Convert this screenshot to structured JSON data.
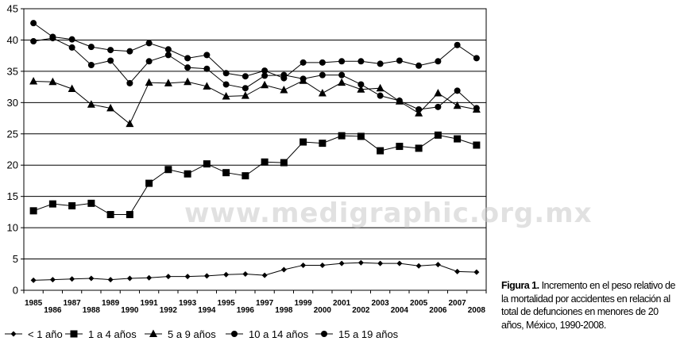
{
  "chart_data": {
    "type": "line",
    "x": [
      "1985",
      "1986",
      "1987",
      "1988",
      "1989",
      "1990",
      "1991",
      "1992",
      "1993",
      "1994",
      "1995",
      "1996",
      "1997",
      "1998",
      "1999",
      "2000",
      "2001",
      "2002",
      "2003",
      "2004",
      "2005",
      "2006",
      "2007",
      "2008"
    ],
    "ylim": [
      0,
      45
    ],
    "yticks": [
      0,
      5,
      10,
      15,
      20,
      25,
      30,
      35,
      40,
      45
    ],
    "grid": "horizontal",
    "legend_position": "bottom",
    "series": [
      {
        "name": "< 1 año",
        "marker": "diamond",
        "values": [
          1.6,
          1.7,
          1.8,
          1.9,
          1.7,
          1.9,
          2.0,
          2.2,
          2.2,
          2.3,
          2.5,
          2.6,
          2.4,
          3.3,
          4.0,
          4.0,
          4.3,
          4.4,
          4.3,
          4.3,
          3.9,
          4.1,
          3.0,
          2.9
        ]
      },
      {
        "name": "1 a 4 años",
        "marker": "square",
        "values": [
          12.7,
          13.8,
          13.5,
          13.9,
          12.1,
          12.1,
          17.1,
          19.3,
          18.6,
          20.2,
          18.8,
          18.3,
          20.5,
          20.4,
          23.7,
          23.5,
          24.7,
          24.6,
          22.3,
          23.0,
          22.7,
          24.8,
          24.2,
          23.2
        ]
      },
      {
        "name": "5 a 9 años",
        "marker": "triangle",
        "values": [
          33.4,
          33.3,
          32.2,
          29.7,
          29.1,
          26.6,
          33.2,
          33.1,
          33.3,
          32.6,
          31.0,
          31.1,
          32.8,
          32.0,
          33.5,
          31.5,
          33.2,
          32.1,
          32.3,
          30.2,
          28.3,
          31.5,
          29.5,
          28.9
        ]
      },
      {
        "name": "10 a 14 años",
        "marker": "circle",
        "values": [
          39.8,
          40.3,
          38.8,
          36.0,
          36.7,
          33.1,
          36.6,
          37.6,
          35.6,
          35.4,
          32.9,
          32.3,
          34.3,
          34.4,
          33.8,
          34.4,
          34.4,
          32.9,
          31.1,
          30.3,
          28.9,
          29.3,
          31.9,
          29.1
        ]
      },
      {
        "name": "15 a 19 años",
        "marker": "circle",
        "values": [
          42.7,
          40.5,
          40.1,
          38.9,
          38.4,
          38.2,
          39.5,
          38.5,
          37.1,
          37.6,
          34.7,
          34.2,
          35.1,
          33.9,
          36.4,
          36.4,
          36.6,
          36.6,
          36.2,
          36.7,
          35.9,
          36.6,
          39.2,
          37.1
        ]
      }
    ]
  },
  "caption": {
    "label": "Figura 1.",
    "text": " Incremento en el peso relativo de la mortalidad por accidentes en relación al total de defunciones en menores de 20 años, México, 1990-2008."
  },
  "watermark": "www.medigraphic.org.mx"
}
